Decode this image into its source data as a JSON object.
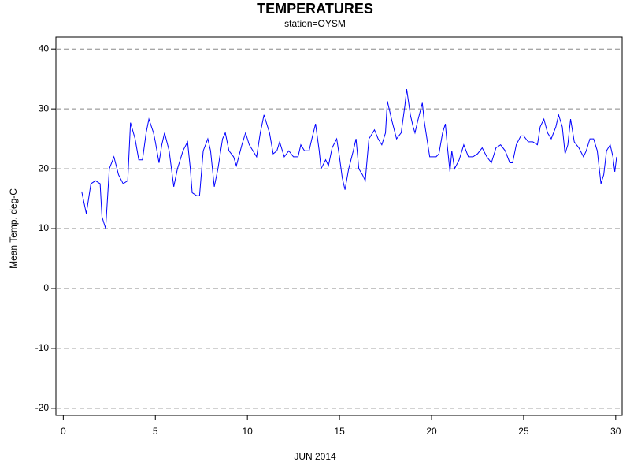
{
  "chart_data": {
    "type": "line",
    "title": "TEMPERATURES",
    "subtitle": "station=OYSM",
    "x_label": "JUN 2014",
    "y_label": "Mean Temp. deg-C",
    "xlim": [
      -0.4,
      30.35
    ],
    "ylim": [
      -21.2,
      42
    ],
    "xticks": [
      0,
      5,
      10,
      15,
      20,
      25,
      30
    ],
    "yticks": [
      -20,
      -10,
      0,
      10,
      20,
      30,
      40
    ],
    "grid": true,
    "x": [
      1.0,
      1.25,
      1.5,
      1.75,
      2.0,
      2.1,
      2.3,
      2.5,
      2.75,
      3.0,
      3.25,
      3.5,
      3.65,
      3.9,
      4.1,
      4.3,
      4.5,
      4.65,
      4.9,
      5.0,
      5.2,
      5.35,
      5.5,
      5.75,
      6.0,
      6.2,
      6.5,
      6.75,
      6.9,
      7.0,
      7.25,
      7.4,
      7.6,
      7.85,
      8.0,
      8.2,
      8.4,
      8.65,
      8.8,
      9.0,
      9.25,
      9.4,
      9.7,
      9.9,
      10.1,
      10.3,
      10.5,
      10.7,
      10.9,
      11.2,
      11.4,
      11.6,
      11.75,
      12.0,
      12.25,
      12.5,
      12.75,
      12.9,
      13.1,
      13.35,
      13.5,
      13.7,
      13.9,
      14.0,
      14.25,
      14.4,
      14.6,
      14.85,
      15.0,
      15.15,
      15.3,
      15.5,
      15.75,
      15.9,
      16.05,
      16.25,
      16.4,
      16.6,
      16.9,
      17.1,
      17.3,
      17.5,
      17.6,
      17.85,
      18.1,
      18.35,
      18.55,
      18.65,
      18.85,
      19.0,
      19.1,
      19.25,
      19.5,
      19.6,
      19.75,
      19.9,
      20.25,
      20.4,
      20.6,
      20.75,
      20.85,
      21.0,
      21.1,
      21.25,
      21.5,
      21.75,
      22.0,
      22.25,
      22.5,
      22.75,
      23.0,
      23.25,
      23.5,
      23.75,
      24.0,
      24.25,
      24.4,
      24.6,
      24.85,
      25.0,
      25.25,
      25.5,
      25.75,
      25.9,
      26.1,
      26.3,
      26.5,
      26.75,
      26.9,
      27.1,
      27.25,
      27.4,
      27.55,
      27.75,
      28.0,
      28.25,
      28.4,
      28.6,
      28.8,
      29.0,
      29.2,
      29.35,
      29.5,
      29.7,
      29.85,
      29.95,
      30.05
    ],
    "series": [
      {
        "name": "Mean Temp",
        "color": "#0000ff",
        "values": [
          16.2,
          12.5,
          17.5,
          18,
          17.5,
          12,
          10,
          20,
          22,
          19,
          17.5,
          18,
          27.7,
          25,
          21.5,
          21.5,
          26,
          28.3,
          26,
          24.5,
          21,
          24,
          26,
          23,
          17,
          20,
          23,
          24.5,
          20,
          16,
          15.5,
          15.5,
          23,
          25,
          23,
          17,
          20,
          25,
          26,
          23,
          22,
          20.5,
          24,
          26,
          24,
          23,
          22,
          26,
          29,
          26,
          22.5,
          23,
          24.5,
          22,
          23,
          22,
          22,
          24,
          23,
          23,
          25,
          27.5,
          23,
          20,
          21.5,
          20.5,
          23.5,
          25,
          22,
          18.5,
          16.5,
          20,
          23,
          25,
          20,
          19,
          18,
          25,
          26.5,
          25,
          24,
          26,
          31.3,
          28,
          25,
          26,
          30.5,
          33.3,
          29,
          27,
          26,
          28,
          31,
          28,
          25,
          22,
          22,
          22.5,
          26,
          27.5,
          24,
          19.5,
          23,
          20,
          21.5,
          24,
          22,
          22,
          22.5,
          23.5,
          22,
          21,
          23.5,
          24,
          23,
          21,
          21,
          24,
          25.5,
          25.5,
          24.5,
          24.5,
          24,
          27,
          28.3,
          26,
          25,
          27,
          29,
          27,
          22.5,
          24,
          28.3,
          24.5,
          23.5,
          22,
          23,
          25,
          25,
          23,
          17.5,
          19,
          23,
          24,
          22,
          19.5,
          22
        ]
      }
    ]
  }
}
